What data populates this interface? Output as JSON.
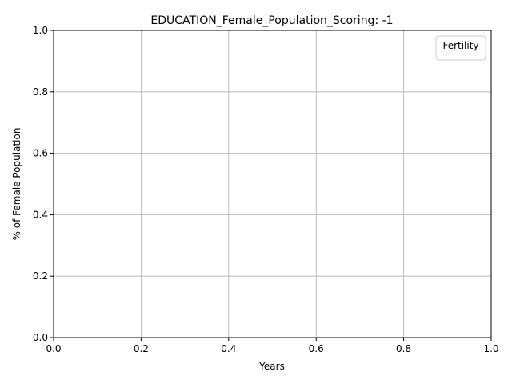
{
  "chart_data": {
    "type": "line",
    "title": "EDUCATION_Female_Population_Scoring: -1",
    "xlabel": "Years",
    "ylabel": "% of Female Population",
    "xlim": [
      0.0,
      1.0
    ],
    "ylim": [
      0.0,
      1.0
    ],
    "x_ticks": [
      "0.0",
      "0.2",
      "0.4",
      "0.6",
      "0.8",
      "1.0"
    ],
    "y_ticks": [
      "0.0",
      "0.2",
      "0.4",
      "0.6",
      "0.8",
      "1.0"
    ],
    "grid": true,
    "legend": {
      "title": "Fertility",
      "placement": "top-right",
      "entries": []
    },
    "series": []
  }
}
